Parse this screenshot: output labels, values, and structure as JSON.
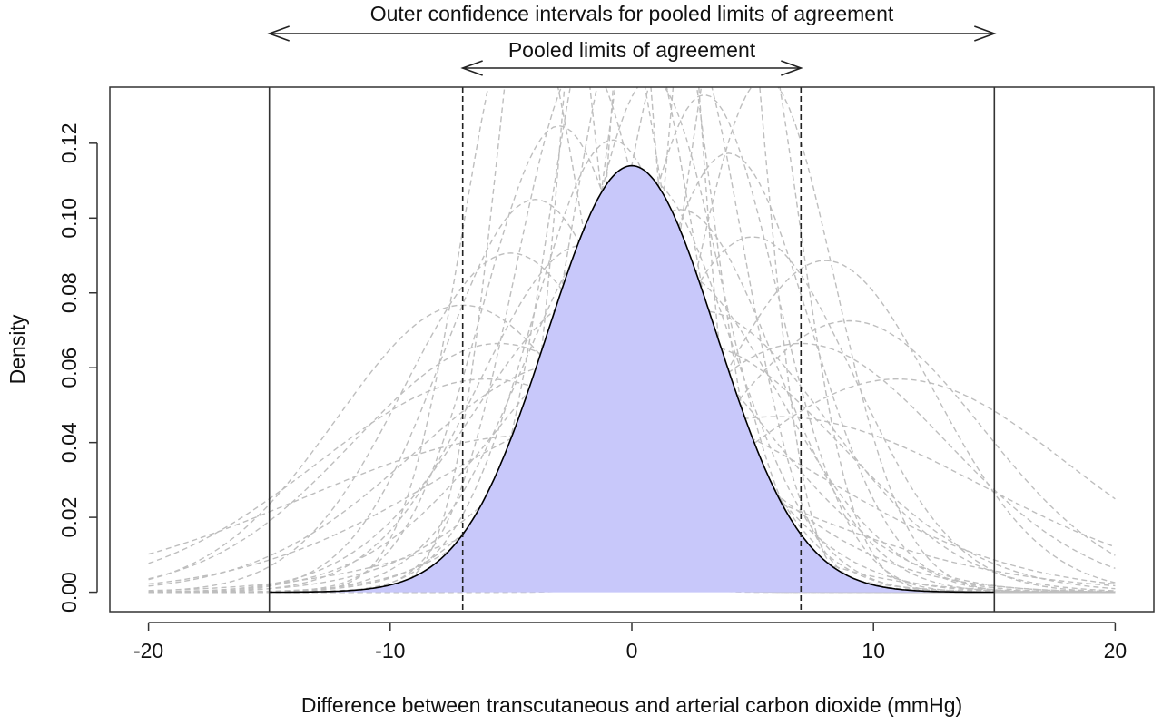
{
  "chart_data": {
    "type": "line",
    "title": "",
    "xlabel": "Difference between transcutaneous and arterial carbon dioxide (mmHg)",
    "ylabel": "Density",
    "xlim": [
      -21.6,
      21.6
    ],
    "ylim": [
      -0.0052,
      0.135
    ],
    "x_ticks": [
      -20,
      -10,
      0,
      10,
      20
    ],
    "x_tick_labels": [
      "-20",
      "-10",
      "0",
      "10",
      "20"
    ],
    "y_ticks": [
      0.0,
      0.02,
      0.04,
      0.06,
      0.08,
      0.1,
      0.12
    ],
    "y_tick_labels": [
      "0.00",
      "0.02",
      "0.04",
      "0.06",
      "0.08",
      "0.10",
      "0.12"
    ],
    "grid": false,
    "pooled_density": {
      "distribution": "normal",
      "mean": 0.0,
      "sd": 3.5,
      "x_range": [
        -15,
        15
      ],
      "fill_color": "#c8c8fa",
      "line_color": "#000000"
    },
    "vertical_lines": [
      {
        "x": -7.0,
        "style": "dashed",
        "label": "Pooled limits of agreement"
      },
      {
        "x": 7.0,
        "style": "dashed",
        "label": "Pooled limits of agreement"
      },
      {
        "x": -15.0,
        "style": "solid",
        "label": "Outer confidence intervals for pooled limits of agreement"
      },
      {
        "x": 15.0,
        "style": "solid",
        "label": "Outer confidence intervals for pooled limits of agreement"
      }
    ],
    "annotations": [
      {
        "text": "Outer confidence intervals for pooled limits of agreement",
        "x_from": -15.0,
        "x_to": 15.0,
        "double_arrow": true
      },
      {
        "text": "Pooled limits of agreement",
        "x_from": -7.0,
        "x_to": 7.0,
        "double_arrow": true
      }
    ],
    "series_style": {
      "color": "#bebebe",
      "dash": "dashed"
    },
    "series": [
      {
        "mean": 0.0,
        "sd": 2.5
      },
      {
        "mean": 1.0,
        "sd": 2.2
      },
      {
        "mean": -1.0,
        "sd": 2.4
      },
      {
        "mean": 2.0,
        "sd": 2.6
      },
      {
        "mean": -2.0,
        "sd": 2.8
      },
      {
        "mean": 3.0,
        "sd": 3.0
      },
      {
        "mean": -3.0,
        "sd": 3.2
      },
      {
        "mean": 0.5,
        "sd": 3.6
      },
      {
        "mean": -0.5,
        "sd": 4.0
      },
      {
        "mean": 4.0,
        "sd": 3.4
      },
      {
        "mean": -4.0,
        "sd": 3.8
      },
      {
        "mean": 1.5,
        "sd": 4.6
      },
      {
        "mean": -1.5,
        "sd": 5.0
      },
      {
        "mean": 0.0,
        "sd": 5.5
      },
      {
        "mean": 2.5,
        "sd": 6.0
      },
      {
        "mean": -2.5,
        "sd": 6.5
      },
      {
        "mean": 5.0,
        "sd": 4.2
      },
      {
        "mean": -5.0,
        "sd": 4.4
      },
      {
        "mean": 8.0,
        "sd": 4.5
      },
      {
        "mean": -7.0,
        "sd": 5.2
      },
      {
        "mean": 11.0,
        "sd": 7.0
      },
      {
        "mean": -6.0,
        "sd": 7.0
      },
      {
        "mean": 0.0,
        "sd": 8.0
      },
      {
        "mean": 6.0,
        "sd": 8.5
      },
      {
        "mean": -4.0,
        "sd": 9.5
      },
      {
        "mean": 3.5,
        "sd": 1.8
      },
      {
        "mean": -3.5,
        "sd": 2.0
      },
      {
        "mean": 1.0,
        "sd": 1.6
      },
      {
        "mean": -1.0,
        "sd": 1.7
      },
      {
        "mean": 4.5,
        "sd": 2.3
      },
      {
        "mean": -4.5,
        "sd": 2.5
      },
      {
        "mean": 2.0,
        "sd": 3.9
      },
      {
        "mean": -2.0,
        "sd": 4.3
      },
      {
        "mean": 5.5,
        "sd": 2.9
      },
      {
        "mean": 0.8,
        "sd": 2.9
      },
      {
        "mean": -0.8,
        "sd": 3.3
      },
      {
        "mean": 2.8,
        "sd": 5.3
      },
      {
        "mean": -5.5,
        "sd": 6.0
      },
      {
        "mean": 7.0,
        "sd": 6.0
      },
      {
        "mean": 9.0,
        "sd": 5.5
      }
    ]
  }
}
